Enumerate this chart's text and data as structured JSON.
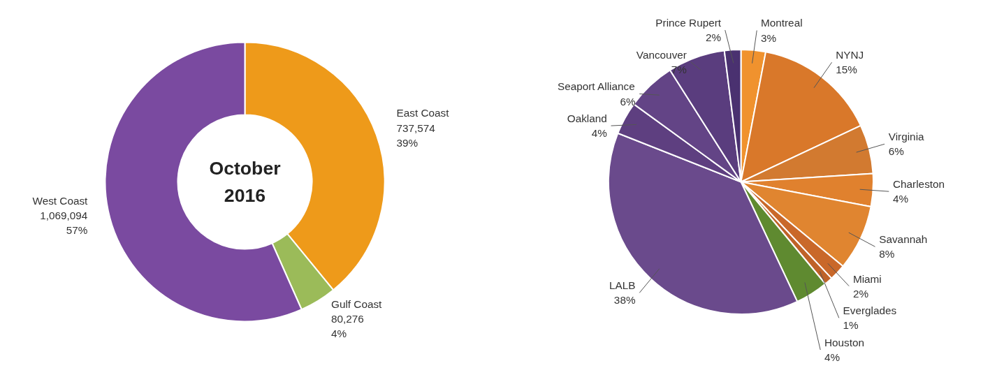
{
  "chart_data": [
    {
      "type": "donut",
      "title": "October 2016",
      "categories": [
        "East Coast",
        "Gulf Coast",
        "West Coast"
      ],
      "values": [
        737574,
        80276,
        1069094
      ],
      "colors": [
        "#ee9a1a",
        "#9bbb59",
        "#7a4aa0"
      ],
      "value_labels": [
        "737,574\n39%",
        "80,276\n4%",
        "1,069,094\n57%"
      ]
    },
    {
      "type": "pie",
      "categories": [
        "Montreal",
        "NYNJ",
        "Virginia",
        "Charleston",
        "Savannah",
        "Miami",
        "Everglades",
        "Houston",
        "LALB",
        "Oakland",
        "Seaport Alliance",
        "Vancouver",
        "Prince Rupert"
      ],
      "values": [
        3,
        15,
        6,
        4,
        8,
        2,
        1,
        4,
        38,
        4,
        6,
        7,
        2
      ],
      "colors": [
        "#f0922e",
        "#d9782a",
        "#d27a30",
        "#e0812e",
        "#e08530",
        "#c9682a",
        "#bf6228",
        "#5f8a30",
        "#6a4a8c",
        "#5e3f80",
        "#634486",
        "#5a3d7e",
        "#4a3170"
      ],
      "value_labels": [
        "3%",
        "15%",
        "6%",
        "4%",
        "8%",
        "2%",
        "1%",
        "4%",
        "38%",
        "4%",
        "6%",
        "7%",
        "2%"
      ]
    }
  ]
}
